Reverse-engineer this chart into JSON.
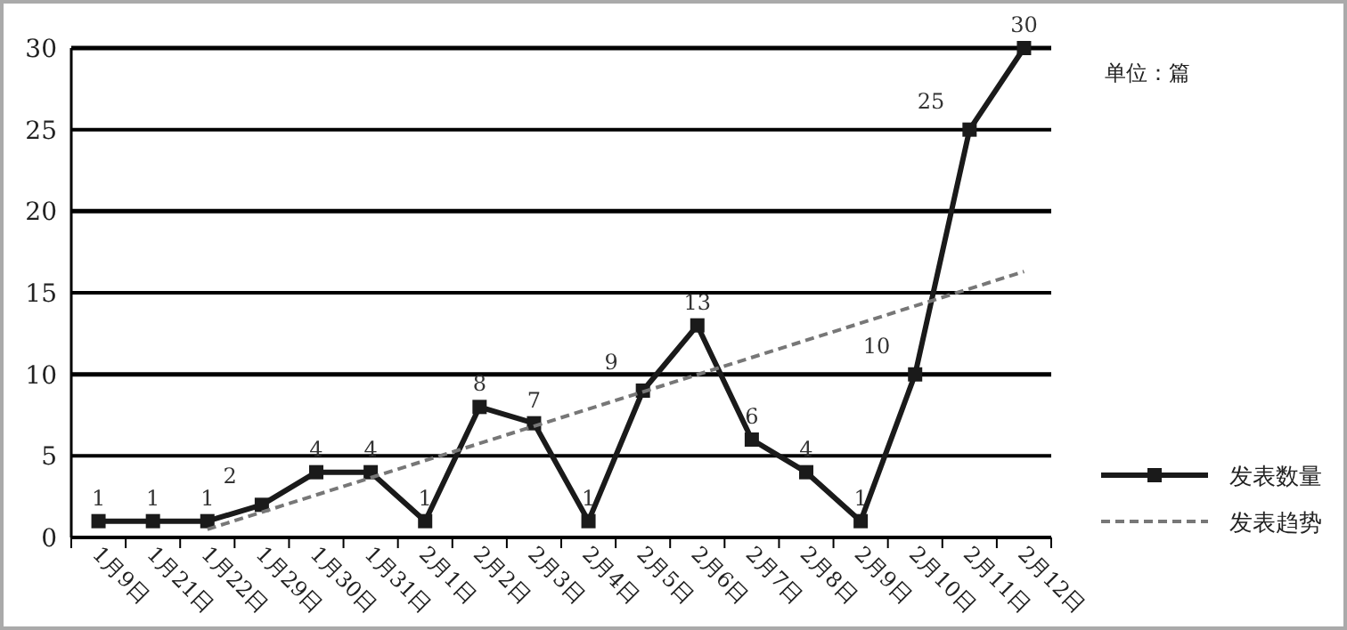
{
  "chart_data": {
    "type": "line",
    "categories": [
      "1月9日",
      "1月21日",
      "1月22日",
      "1月29日",
      "1月30日",
      "1月31日",
      "2月1日",
      "2月2日",
      "2月3日",
      "2月4日",
      "2月5日",
      "2月6日",
      "2月7日",
      "2月8日",
      "2月9日",
      "2月10日",
      "2月11日",
      "2月12日"
    ],
    "series": [
      {
        "name": "发表数量",
        "color": "#1a1a1a",
        "marker": "square",
        "line_style": "solid",
        "data_labels": true,
        "values": [
          1,
          1,
          1,
          2,
          4,
          4,
          1,
          8,
          7,
          1,
          9,
          13,
          6,
          4,
          1,
          10,
          25,
          30
        ]
      },
      {
        "name": "发表趋势",
        "color": "#777777",
        "marker": "none",
        "line_style": "dashed",
        "x": [
          "1月22日",
          "2月12日"
        ],
        "values": [
          0.5,
          16.3
        ]
      }
    ],
    "ylim": [
      0,
      30
    ],
    "yticks": [
      0,
      5,
      10,
      15,
      20,
      25,
      30
    ],
    "grid": "y",
    "legend": "right",
    "annotations": [
      "单位：篇"
    ]
  }
}
